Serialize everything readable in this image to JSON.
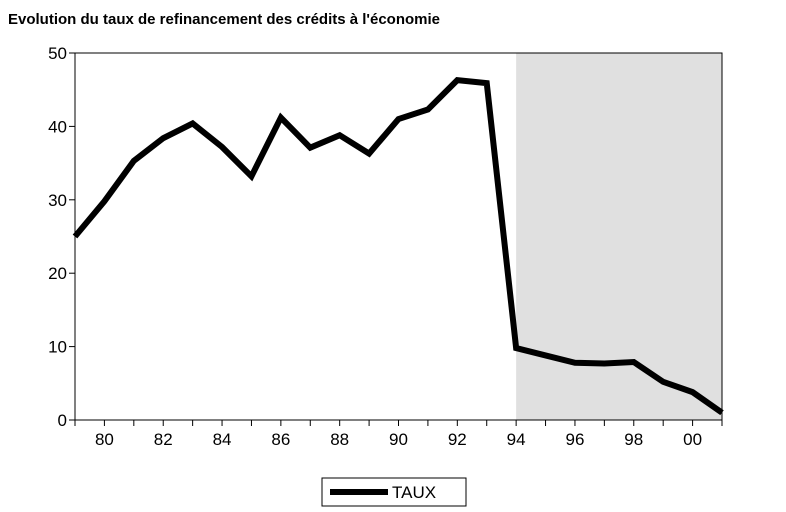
{
  "chart_data": {
    "type": "line",
    "title": "Evolution du taux de refinancement des crédits à l'économie",
    "categories": [
      null,
      "80",
      null,
      "82",
      null,
      "84",
      null,
      "86",
      null,
      "88",
      null,
      "90",
      null,
      "92",
      null,
      "94",
      null,
      "96",
      null,
      "98",
      null,
      "00",
      null
    ],
    "series": [
      {
        "name": "TAUX",
        "color": "#000000",
        "values": [
          25,
          29.8,
          35.3,
          38.4,
          40.4,
          37.2,
          33.2,
          41.2,
          37.1,
          38.8,
          36.3,
          41,
          42.3,
          46.3,
          45.9,
          9.8,
          8.8,
          7.8,
          7.7,
          7.9,
          5.2,
          3.8,
          1.0
        ]
      }
    ],
    "ylim": [
      0,
      50
    ],
    "yticks": [
      0,
      10,
      20,
      30,
      40,
      50
    ],
    "shade_start": "94",
    "shade_color": "#e0e0e0",
    "legend": "bottom"
  }
}
